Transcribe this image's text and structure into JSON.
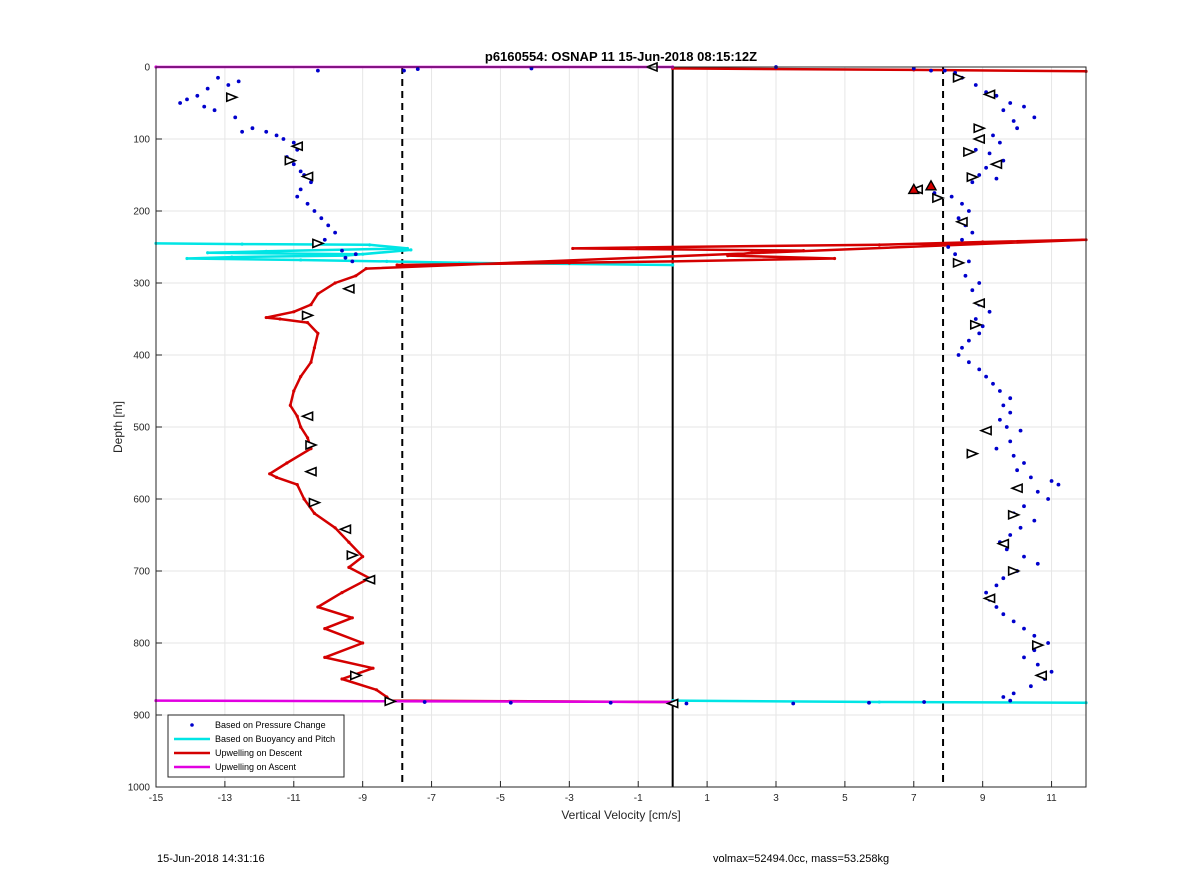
{
  "chart_data": {
    "type": "scatter",
    "title": "p6160554: OSNAP 11 15-Jun-2018 08:15:12Z",
    "xlabel": "Vertical Velocity [cm/s]",
    "ylabel": "Depth [m]",
    "xlim": [
      -15,
      12
    ],
    "ylim": [
      0,
      1000
    ],
    "y_reversed": true,
    "grid": true,
    "x_ticks": [
      -15,
      -13,
      -11,
      -9,
      -7,
      -5,
      -3,
      -1,
      1,
      3,
      5,
      7,
      9,
      11
    ],
    "y_ticks": [
      0,
      100,
      200,
      300,
      400,
      500,
      600,
      700,
      800,
      900,
      1000
    ],
    "legend_placement": "bottom-left",
    "legend": [
      {
        "label": "Based on Pressure Change",
        "color": "#0000cc",
        "style": "dot"
      },
      {
        "label": "Based on Buoyancy and Pitch",
        "color": "#00e5e5",
        "style": "line"
      },
      {
        "label": "Upwelling on Descent",
        "color": "#d40000",
        "style": "line"
      },
      {
        "label": "Upwelling on Ascent",
        "color": "#e100e1",
        "style": "line"
      }
    ],
    "reference_lines": {
      "dashed_x": [
        -7.85,
        7.85
      ],
      "solid_x": [
        0
      ]
    },
    "series": [
      {
        "name": "Based on Pressure Change",
        "style": "dots",
        "color": "#0000cc",
        "points": [
          [
            -13.2,
            15
          ],
          [
            -12.9,
            25
          ],
          [
            -13.5,
            30
          ],
          [
            -13.8,
            40
          ],
          [
            -14.1,
            45
          ],
          [
            -14.3,
            50
          ],
          [
            -13.6,
            55
          ],
          [
            -13.3,
            60
          ],
          [
            -12.7,
            70
          ],
          [
            -12.6,
            20
          ],
          [
            -12.5,
            90
          ],
          [
            -12.2,
            85
          ],
          [
            -11.8,
            90
          ],
          [
            -11.5,
            95
          ],
          [
            -11.3,
            100
          ],
          [
            -11.0,
            105
          ],
          [
            -10.9,
            115
          ],
          [
            -11.2,
            125
          ],
          [
            -11.0,
            135
          ],
          [
            -10.8,
            145
          ],
          [
            -10.7,
            150
          ],
          [
            -10.5,
            160
          ],
          [
            -10.8,
            170
          ],
          [
            -10.9,
            180
          ],
          [
            -10.6,
            190
          ],
          [
            -10.4,
            200
          ],
          [
            -10.2,
            210
          ],
          [
            -10.0,
            220
          ],
          [
            -9.8,
            230
          ],
          [
            -10.1,
            240
          ],
          [
            -10.4,
            245
          ],
          [
            -9.6,
            255
          ],
          [
            -9.2,
            260
          ],
          [
            -9.5,
            265
          ],
          [
            -9.3,
            270
          ],
          [
            -10.3,
            5
          ],
          [
            -7.8,
            5
          ],
          [
            -7.4,
            3
          ],
          [
            -4.1,
            2
          ],
          [
            3.0,
            0
          ],
          [
            7.0,
            2
          ],
          [
            7.5,
            5
          ],
          [
            7.9,
            5
          ],
          [
            8.2,
            8
          ],
          [
            8.4,
            15
          ],
          [
            8.8,
            25
          ],
          [
            9.1,
            35
          ],
          [
            9.4,
            40
          ],
          [
            9.8,
            50
          ],
          [
            10.2,
            55
          ],
          [
            9.6,
            60
          ],
          [
            10.5,
            70
          ],
          [
            9.9,
            75
          ],
          [
            10.0,
            85
          ],
          [
            9.3,
            95
          ],
          [
            9.0,
            100
          ],
          [
            9.5,
            105
          ],
          [
            8.8,
            115
          ],
          [
            9.2,
            120
          ],
          [
            9.6,
            130
          ],
          [
            9.1,
            140
          ],
          [
            8.9,
            150
          ],
          [
            9.4,
            155
          ],
          [
            8.7,
            160
          ],
          [
            7.2,
            170
          ],
          [
            7.6,
            175
          ],
          [
            8.1,
            180
          ],
          [
            8.4,
            190
          ],
          [
            8.6,
            200
          ],
          [
            8.3,
            210
          ],
          [
            8.5,
            220
          ],
          [
            8.7,
            230
          ],
          [
            8.4,
            240
          ],
          [
            8.0,
            250
          ],
          [
            8.2,
            260
          ],
          [
            8.6,
            270
          ],
          [
            8.5,
            290
          ],
          [
            8.9,
            300
          ],
          [
            8.7,
            310
          ],
          [
            8.9,
            330
          ],
          [
            9.2,
            340
          ],
          [
            8.8,
            350
          ],
          [
            9.0,
            360
          ],
          [
            8.9,
            370
          ],
          [
            8.6,
            380
          ],
          [
            8.4,
            390
          ],
          [
            8.3,
            400
          ],
          [
            8.6,
            410
          ],
          [
            8.9,
            420
          ],
          [
            9.1,
            430
          ],
          [
            9.3,
            440
          ],
          [
            9.5,
            450
          ],
          [
            9.8,
            460
          ],
          [
            9.6,
            470
          ],
          [
            9.8,
            480
          ],
          [
            9.5,
            490
          ],
          [
            9.7,
            500
          ],
          [
            10.1,
            505
          ],
          [
            9.8,
            520
          ],
          [
            9.4,
            530
          ],
          [
            9.9,
            540
          ],
          [
            10.2,
            550
          ],
          [
            10.0,
            560
          ],
          [
            10.4,
            570
          ],
          [
            11.0,
            575
          ],
          [
            11.2,
            580
          ],
          [
            10.6,
            590
          ],
          [
            10.9,
            600
          ],
          [
            10.2,
            610
          ],
          [
            9.9,
            620
          ],
          [
            10.5,
            630
          ],
          [
            10.1,
            640
          ],
          [
            9.8,
            650
          ],
          [
            9.5,
            660
          ],
          [
            9.7,
            670
          ],
          [
            10.2,
            680
          ],
          [
            10.6,
            690
          ],
          [
            10.0,
            700
          ],
          [
            9.6,
            710
          ],
          [
            9.4,
            720
          ],
          [
            9.1,
            730
          ],
          [
            9.2,
            740
          ],
          [
            9.4,
            750
          ],
          [
            9.6,
            760
          ],
          [
            9.9,
            770
          ],
          [
            10.2,
            780
          ],
          [
            10.5,
            790
          ],
          [
            10.9,
            800
          ],
          [
            10.5,
            810
          ],
          [
            10.2,
            820
          ],
          [
            10.6,
            830
          ],
          [
            11.0,
            840
          ],
          [
            10.8,
            850
          ],
          [
            10.4,
            860
          ],
          [
            9.9,
            870
          ],
          [
            9.6,
            875
          ],
          [
            -8.2,
            880
          ],
          [
            -7.2,
            882
          ],
          [
            -4.7,
            883
          ],
          [
            -1.8,
            883
          ],
          [
            0.0,
            884
          ],
          [
            0.4,
            884
          ],
          [
            3.5,
            884
          ],
          [
            5.7,
            883
          ],
          [
            7.3,
            882
          ],
          [
            9.8,
            880
          ]
        ]
      },
      {
        "name": "Based on Buoyancy and Pitch",
        "style": "line",
        "color": "#00e5e5",
        "points": [
          [
            -15,
            245
          ],
          [
            -12.5,
            246
          ],
          [
            -8.8,
            247
          ],
          [
            -7.7,
            252
          ],
          [
            -11.8,
            256
          ],
          [
            -13.5,
            258
          ],
          [
            -9.0,
            260
          ],
          [
            -7.6,
            254
          ],
          [
            -9.5,
            262
          ],
          [
            -12.8,
            264
          ],
          [
            -14.1,
            266
          ],
          [
            -10.8,
            268
          ],
          [
            -8.3,
            270
          ],
          [
            -6.2,
            272
          ],
          [
            0.0,
            275
          ],
          [
            0.0,
            880
          ],
          [
            6.0,
            882
          ],
          [
            12.0,
            883
          ]
        ]
      },
      {
        "name": "Upwelling on Descent",
        "style": "line",
        "color": "#d40000",
        "points": [
          [
            0.0,
            2
          ],
          [
            7.0,
            4
          ],
          [
            12.0,
            6
          ],
          [
            -8.0,
            275
          ],
          [
            -3.0,
            272
          ],
          [
            0.0,
            270
          ],
          [
            4.7,
            266
          ],
          [
            1.6,
            262
          ],
          [
            2.3,
            258
          ],
          [
            3.8,
            255
          ],
          [
            -2.9,
            252
          ],
          [
            0.0,
            250
          ],
          [
            6.0,
            247
          ],
          [
            9.0,
            243
          ],
          [
            12.0,
            240
          ],
          [
            -8.9,
            280
          ],
          [
            -9.2,
            290
          ],
          [
            -9.8,
            300
          ],
          [
            -10.3,
            315
          ],
          [
            -10.5,
            330
          ],
          [
            -11.0,
            340
          ],
          [
            -11.8,
            348
          ],
          [
            -11.4,
            350
          ],
          [
            -10.6,
            355
          ],
          [
            -10.3,
            370
          ],
          [
            -10.4,
            390
          ],
          [
            -10.5,
            410
          ],
          [
            -10.8,
            430
          ],
          [
            -11.0,
            450
          ],
          [
            -11.1,
            470
          ],
          [
            -10.9,
            485
          ],
          [
            -10.8,
            500
          ],
          [
            -10.6,
            515
          ],
          [
            -10.5,
            530
          ],
          [
            -11.2,
            550
          ],
          [
            -11.7,
            565
          ],
          [
            -11.5,
            570
          ],
          [
            -10.9,
            580
          ],
          [
            -10.7,
            600
          ],
          [
            -10.4,
            620
          ],
          [
            -9.8,
            640
          ],
          [
            -9.4,
            660
          ],
          [
            -9.0,
            680
          ],
          [
            -9.4,
            695
          ],
          [
            -8.8,
            710
          ],
          [
            -9.6,
            730
          ],
          [
            -10.3,
            750
          ],
          [
            -9.3,
            765
          ],
          [
            -10.1,
            780
          ],
          [
            -9.0,
            800
          ],
          [
            -10.1,
            820
          ],
          [
            -8.7,
            835
          ],
          [
            -9.6,
            850
          ],
          [
            -8.6,
            865
          ],
          [
            -8.3,
            875
          ],
          [
            -8.2,
            880
          ],
          [
            0.0,
            882
          ]
        ]
      },
      {
        "name": "Upwelling on Ascent",
        "style": "line",
        "color": "#e100e1",
        "points": [
          [
            -15,
            0
          ],
          [
            0.0,
            0
          ],
          [
            -15,
            880
          ],
          [
            0.0,
            882
          ]
        ]
      }
    ],
    "markers": [
      [
        -12.8,
        42
      ],
      [
        -10.9,
        110
      ],
      [
        -11.1,
        130
      ],
      [
        -10.6,
        152
      ],
      [
        -10.3,
        245
      ],
      [
        -9.4,
        308
      ],
      [
        -10.6,
        345
      ],
      [
        -10.6,
        485
      ],
      [
        -10.5,
        525
      ],
      [
        -10.5,
        562
      ],
      [
        -10.4,
        605
      ],
      [
        -9.5,
        642
      ],
      [
        -9.3,
        678
      ],
      [
        -8.8,
        712
      ],
      [
        -9.2,
        845
      ],
      [
        -0.6,
        0
      ],
      [
        8.3,
        15
      ],
      [
        9.2,
        38
      ],
      [
        8.9,
        85
      ],
      [
        8.9,
        100
      ],
      [
        8.6,
        118
      ],
      [
        9.4,
        135
      ],
      [
        8.7,
        153
      ],
      [
        7.1,
        170
      ],
      [
        7.7,
        182
      ],
      [
        8.4,
        215
      ],
      [
        8.3,
        272
      ],
      [
        8.9,
        328
      ],
      [
        8.8,
        358
      ],
      [
        9.1,
        505
      ],
      [
        8.7,
        537
      ],
      [
        10.0,
        585
      ],
      [
        9.9,
        622
      ],
      [
        9.6,
        662
      ],
      [
        9.9,
        700
      ],
      [
        9.2,
        738
      ],
      [
        10.6,
        803
      ],
      [
        10.7,
        845
      ],
      [
        -8.2,
        881
      ],
      [
        0.0,
        884
      ]
    ],
    "red_markers": [
      [
        7.5,
        165
      ],
      [
        7.0,
        170
      ]
    ],
    "footer_left": "15-Jun-2018 14:31:16",
    "footer_right": "volmax=52494.0cc, mass=53.258kg"
  }
}
